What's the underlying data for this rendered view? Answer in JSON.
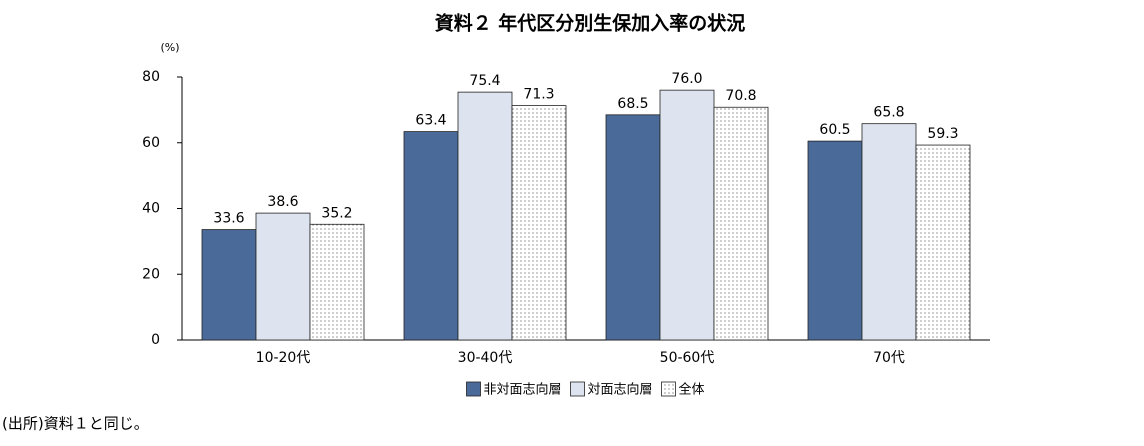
{
  "chart_data": {
    "type": "bar",
    "title": "資料２ 年代区分別生保加入率の状況",
    "ylabel": "(%)",
    "categories": [
      "10-20代",
      "30-40代",
      "50-60代",
      "70代"
    ],
    "series": [
      {
        "name": "非対面志向層",
        "color": "#4a6a9a",
        "values": [
          33.6,
          63.4,
          68.5,
          60.5
        ],
        "value_labels": [
          "33.6",
          "63.4",
          "68.5",
          "60.5"
        ]
      },
      {
        "name": "対面志向層",
        "color": "#dde4ef",
        "values": [
          38.6,
          75.4,
          76.0,
          65.8
        ],
        "value_labels": [
          "38.6",
          "75.4",
          "76.0",
          "65.8"
        ]
      },
      {
        "name": "全体",
        "color": "#ffffff",
        "pattern": "dots",
        "values": [
          35.2,
          71.3,
          70.8,
          59.3
        ],
        "value_labels": [
          "35.2",
          "71.3",
          "70.8",
          "59.3"
        ]
      }
    ],
    "ylim": [
      0,
      80
    ],
    "yticks": [
      0,
      20,
      40,
      60,
      80
    ],
    "grid": false,
    "legend": "bottom"
  },
  "source": "(出所)資料１と同じ。"
}
